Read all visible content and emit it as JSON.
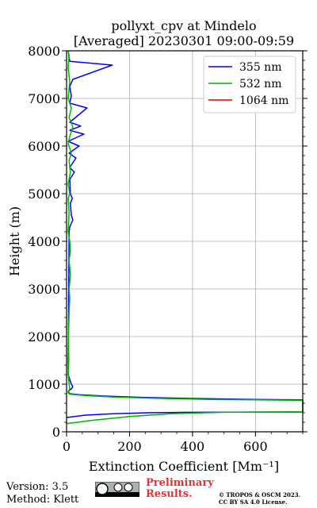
{
  "chart_data": {
    "type": "line",
    "title": "pollyxt_cpv at Mindelo",
    "subtitle": "[Averaged] 20230301 09:00-09:59",
    "xlabel": "Extinction Coefficient [Mm⁻¹]",
    "ylabel": "Height (m)",
    "xlim": [
      0,
      750
    ],
    "ylim": [
      0,
      8000
    ],
    "xticks": [
      0,
      200,
      400,
      600
    ],
    "yticks": [
      0,
      1000,
      2000,
      3000,
      4000,
      5000,
      6000,
      7000,
      8000
    ],
    "grid": true,
    "legend_position": "top-right",
    "series": [
      {
        "name": "355 nm",
        "color": "#0000ff",
        "points": [
          [
            -5,
            300
          ],
          [
            60,
            350
          ],
          [
            150,
            380
          ],
          [
            260,
            400
          ],
          [
            400,
            410
          ],
          [
            600,
            415
          ],
          [
            750,
            415
          ],
          [
            750,
            670
          ],
          [
            600,
            680
          ],
          [
            400,
            700
          ],
          [
            250,
            720
          ],
          [
            120,
            750
          ],
          [
            40,
            780
          ],
          [
            10,
            800
          ],
          [
            5,
            850
          ],
          [
            15,
            900
          ],
          [
            20,
            950
          ],
          [
            15,
            1000
          ],
          [
            10,
            1100
          ],
          [
            5,
            1200
          ],
          [
            5,
            1300
          ],
          [
            8,
            4200
          ],
          [
            10,
            4300
          ],
          [
            20,
            4450
          ],
          [
            15,
            4550
          ],
          [
            12,
            4800
          ],
          [
            18,
            4900
          ],
          [
            12,
            5000
          ],
          [
            10,
            5300
          ],
          [
            25,
            5450
          ],
          [
            10,
            5550
          ],
          [
            30,
            5750
          ],
          [
            8,
            5850
          ],
          [
            40,
            6000
          ],
          [
            5,
            6100
          ],
          [
            55,
            6250
          ],
          [
            10,
            6330
          ],
          [
            45,
            6420
          ],
          [
            10,
            6500
          ],
          [
            65,
            6800
          ],
          [
            10,
            6900
          ],
          [
            15,
            7050
          ],
          [
            10,
            7250
          ],
          [
            20,
            7400
          ],
          [
            145,
            7700
          ],
          [
            10,
            7780
          ],
          [
            5,
            8000
          ]
        ]
      },
      {
        "name": "532 nm",
        "color": "#00b400",
        "points": [
          [
            0,
            170
          ],
          [
            80,
            240
          ],
          [
            200,
            320
          ],
          [
            330,
            380
          ],
          [
            500,
            410
          ],
          [
            750,
            420
          ],
          [
            750,
            660
          ],
          [
            600,
            670
          ],
          [
            450,
            680
          ],
          [
            300,
            700
          ],
          [
            150,
            730
          ],
          [
            60,
            760
          ],
          [
            10,
            790
          ],
          [
            5,
            820
          ],
          [
            10,
            900
          ],
          [
            8,
            1000
          ],
          [
            5,
            1200
          ],
          [
            7,
            1500
          ],
          [
            6,
            2000
          ],
          [
            8,
            2500
          ],
          [
            10,
            2800
          ],
          [
            8,
            3000
          ],
          [
            12,
            3300
          ],
          [
            8,
            3600
          ],
          [
            12,
            3800
          ],
          [
            10,
            4000
          ],
          [
            5,
            4200
          ],
          [
            8,
            4600
          ],
          [
            5,
            4900
          ],
          [
            10,
            5000
          ],
          [
            5,
            5200
          ],
          [
            12,
            5450
          ],
          [
            8,
            5700
          ],
          [
            15,
            5850
          ],
          [
            5,
            6050
          ],
          [
            10,
            6200
          ],
          [
            20,
            6400
          ],
          [
            8,
            6600
          ],
          [
            15,
            6800
          ],
          [
            5,
            7000
          ],
          [
            10,
            7350
          ],
          [
            5,
            7650
          ],
          [
            8,
            7900
          ],
          [
            5,
            8000
          ]
        ]
      },
      {
        "name": "1064 nm",
        "color": "#dd0000",
        "points": []
      }
    ]
  },
  "footer": {
    "version": "Version: 3.5",
    "method": "Method: Klett",
    "preliminary_line1": "Preliminary",
    "preliminary_line2": "Results.",
    "copyright_line1": "© TROPOS & OSCM 2023.",
    "copyright_line2": "CC BY SA 4.0 License.",
    "preliminary_color": "#e83030"
  }
}
